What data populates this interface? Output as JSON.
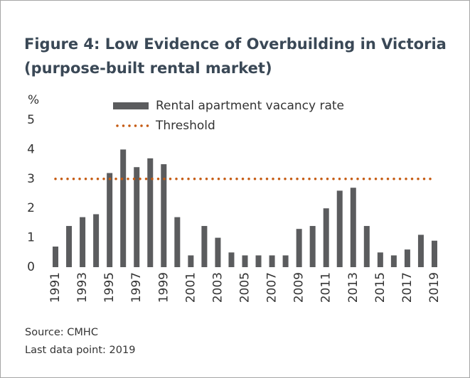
{
  "chart_data": {
    "type": "bar",
    "title": "Figure 4: Low Evidence of Overbuilding in Victoria (purpose-built rental market)",
    "y_label": "%",
    "categories": [
      "1991",
      null,
      "1993",
      null,
      "1995",
      null,
      "1997",
      null,
      "1999",
      null,
      "2001",
      null,
      "2003",
      null,
      "2005",
      null,
      "2007",
      null,
      "2009",
      null,
      "2011",
      null,
      "2013",
      null,
      "2015",
      null,
      "2017",
      null,
      "2019"
    ],
    "series": [
      {
        "name": "Rental apartment vacancy rate",
        "color": "#5b5c5e",
        "values": [
          0.7,
          1.4,
          1.7,
          1.8,
          3.2,
          4.0,
          3.4,
          3.7,
          3.5,
          1.7,
          0.4,
          1.4,
          1.0,
          0.5,
          0.4,
          0.4,
          0.4,
          0.4,
          1.3,
          1.4,
          2.0,
          2.6,
          2.7,
          1.4,
          0.5,
          0.4,
          0.6,
          1.1,
          0.9
        ]
      }
    ],
    "threshold": {
      "name": "Threshold",
      "value": 3,
      "color": "#c55a11"
    },
    "ylim": [
      0,
      5
    ],
    "yticks": [
      0,
      1,
      2,
      3,
      4,
      5
    ],
    "grid": false,
    "notes": [
      "Source: CMHC",
      "Last data point: 2019"
    ]
  }
}
